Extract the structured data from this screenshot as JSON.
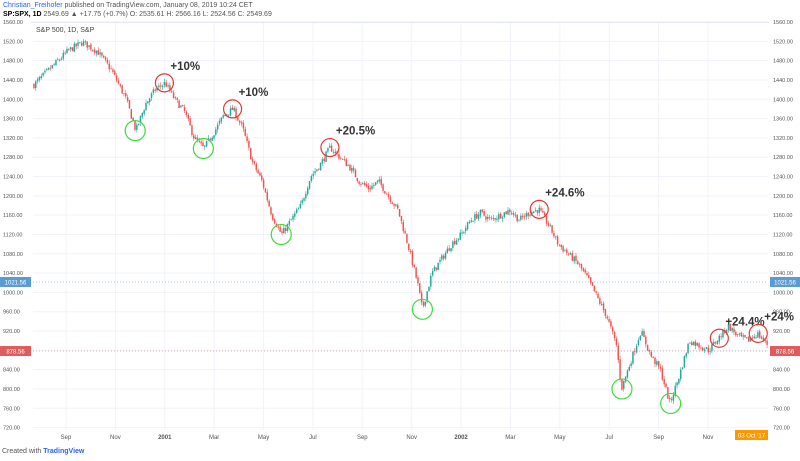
{
  "header": {
    "author": "Christian_Freihofer",
    "published": "published on TradingView.com, January 08, 2019 10:24 CET",
    "symbol": "SP:SPX, 1D",
    "ohlc": "2549.69 ▲ +17.75 (+0.7%) O: 2535.61 H: 2566.16 L: 2524.56 C: 2549.69"
  },
  "chart_data": {
    "type": "candlestick",
    "title": "S&P 500, 1D, S&P",
    "ylim": [
      715,
      1560
    ],
    "y_ticks": [
      "1560.00",
      "1520.00",
      "1480.00",
      "1440.00",
      "1400.00",
      "1360.00",
      "1320.00",
      "1280.00",
      "1240.00",
      "1200.00",
      "1160.00",
      "1120.00",
      "1080.00",
      "1040.00",
      "1000.00",
      "960.00",
      "920.00",
      "880.00",
      "840.00",
      "800.00",
      "760.00",
      "720.00"
    ],
    "x_ticks": [
      "Sep",
      "Nov",
      "2001",
      "Mar",
      "May",
      "Jul",
      "Sep",
      "Nov",
      "2002",
      "Mar",
      "May",
      "Jul",
      "Sep",
      "Nov"
    ],
    "price_path": [
      [
        0,
        1430
      ],
      [
        3,
        1460
      ],
      [
        7,
        1500
      ],
      [
        10,
        1518
      ],
      [
        13,
        1500
      ],
      [
        16,
        1460
      ],
      [
        19,
        1400
      ],
      [
        21,
        1335
      ],
      [
        23,
        1390
      ],
      [
        25,
        1420
      ],
      [
        27,
        1434
      ],
      [
        29,
        1400
      ],
      [
        31,
        1375
      ],
      [
        33,
        1320
      ],
      [
        35,
        1298
      ],
      [
        37,
        1330
      ],
      [
        39,
        1365
      ],
      [
        41,
        1380
      ],
      [
        43,
        1340
      ],
      [
        45,
        1270
      ],
      [
        47,
        1230
      ],
      [
        49,
        1160
      ],
      [
        51,
        1120
      ],
      [
        53,
        1150
      ],
      [
        55,
        1180
      ],
      [
        57,
        1240
      ],
      [
        59,
        1265
      ],
      [
        61,
        1300
      ],
      [
        63,
        1280
      ],
      [
        65,
        1260
      ],
      [
        67,
        1230
      ],
      [
        69,
        1215
      ],
      [
        71,
        1230
      ],
      [
        73,
        1200
      ],
      [
        75,
        1170
      ],
      [
        77,
        1100
      ],
      [
        79,
        1020
      ],
      [
        80,
        965
      ],
      [
        82,
        1040
      ],
      [
        84,
        1070
      ],
      [
        86,
        1100
      ],
      [
        88,
        1120
      ],
      [
        90,
        1150
      ],
      [
        92,
        1165
      ],
      [
        94,
        1150
      ],
      [
        96,
        1160
      ],
      [
        98,
        1170
      ],
      [
        100,
        1150
      ],
      [
        102,
        1165
      ],
      [
        104,
        1172
      ],
      [
        106,
        1140
      ],
      [
        108,
        1100
      ],
      [
        110,
        1080
      ],
      [
        112,
        1060
      ],
      [
        114,
        1030
      ],
      [
        116,
        990
      ],
      [
        118,
        950
      ],
      [
        120,
        890
      ],
      [
        121,
        800
      ],
      [
        123,
        860
      ],
      [
        125,
        920
      ],
      [
        127,
        870
      ],
      [
        129,
        840
      ],
      [
        131,
        770
      ],
      [
        133,
        830
      ],
      [
        135,
        900
      ],
      [
        137,
        890
      ],
      [
        139,
        880
      ],
      [
        141,
        905
      ],
      [
        143,
        930
      ],
      [
        145,
        910
      ],
      [
        147,
        900
      ],
      [
        149,
        915
      ],
      [
        151,
        893
      ]
    ],
    "last_price_label": "1021.56",
    "current_price_label": "878.56",
    "date_label": "03 Oct '17",
    "annotations": {
      "peaks": [
        "+10%",
        "+10%",
        "+20.5%",
        "+24.6%",
        "+24.4%",
        "+24%"
      ]
    }
  },
  "footer": {
    "created_with": "Created with",
    "brand": "TradingView"
  },
  "colors": {
    "up": "#26a69a",
    "down": "#ef5350",
    "high_circle": "#e53935",
    "low_circle": "#3ddc3d",
    "last_price": "#5b9bd5",
    "current_price": "#e05c5c",
    "date_badge": "#ff9800"
  }
}
